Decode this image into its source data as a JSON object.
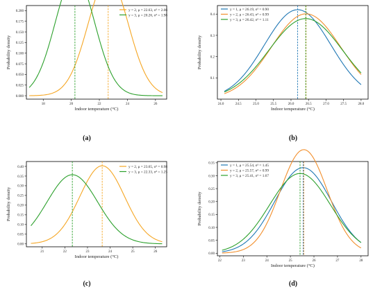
{
  "figure": {
    "panels": [
      {
        "label": "(a)",
        "legend": [
          "y = 2, μ = 22.63, σ² = 2.06",
          "y = 3, μ = 20.26, σ² = 1.98"
        ],
        "xlabel": "Indoor temperature (°C)",
        "ylabel": "Probability density"
      },
      {
        "label": "(b)",
        "legend": [
          "y = 1, μ = 26.19, σ² = 0.90",
          "y = 2, μ = 26.43, σ² = 0.99",
          "y = 3, μ = 26.42, σ² = 1.11"
        ],
        "xlabel": "Indoor temperature (°C)",
        "ylabel": "Probability density"
      },
      {
        "label": "(c)",
        "legend": [
          "y = 2, μ = 23.65, σ² = 0.98",
          "y = 3, μ = 22.33, σ² = 1.25"
        ],
        "xlabel": "Indoor temperature (°C)",
        "ylabel": "Probability density"
      },
      {
        "label": "(d)",
        "legend": [
          "y = 1, μ = 25.54, σ² = 1.45",
          "y = 2, μ = 25.57, σ² = 0.99",
          "y = 3, μ = 25.41, σ² = 1.67"
        ],
        "xlabel": "Indoor temperature (°C)",
        "ylabel": "Probability density"
      }
    ]
  },
  "chart_data": [
    {
      "type": "line",
      "xlabel": "Indoor temperature (°C)",
      "ylabel": "Probability density",
      "xlim": [
        16.8,
        26.8
      ],
      "ylim": [
        -0.008,
        0.212
      ],
      "xticks": [
        "18",
        "20",
        "22",
        "24",
        "26"
      ],
      "yticks": [
        "0.000",
        "0.025",
        "0.050",
        "0.075",
        "0.100",
        "0.125",
        "0.150",
        "0.175",
        "0.200"
      ],
      "legend_position": "top-right",
      "series": [
        {
          "name": "y = 2, μ = 22.63, σ² = 2.06",
          "mean": 22.63,
          "variance": 2.06,
          "x_range": [
            17.0,
            26.5
          ],
          "color": "#f5a623"
        },
        {
          "name": "y = 3, μ = 20.26, σ² = 1.98",
          "mean": 20.26,
          "variance": 1.98,
          "x_range": [
            17.0,
            26.5
          ],
          "color": "#2ca02c"
        }
      ]
    },
    {
      "type": "line",
      "xlabel": "Indoor temperature (°C)",
      "ylabel": "Probability density",
      "xlim": [
        23.9,
        28.2
      ],
      "ylim": [
        0.0,
        0.44
      ],
      "xticks": [
        "24.0",
        "24.5",
        "25.0",
        "25.5",
        "26.0",
        "26.5",
        "27.0",
        "27.5",
        "28.0"
      ],
      "yticks": [
        "0.1",
        "0.2",
        "0.3",
        "0.4"
      ],
      "legend_position": "top-left",
      "series": [
        {
          "name": "y = 1, μ = 26.19, σ² = 0.90",
          "mean": 26.19,
          "variance": 0.9,
          "x_range": [
            24.1,
            28.0
          ],
          "color": "#1f77b4"
        },
        {
          "name": "y = 2, μ = 26.43, σ² = 0.99",
          "mean": 26.43,
          "variance": 0.99,
          "x_range": [
            24.1,
            28.0
          ],
          "color": "#f28e2b"
        },
        {
          "name": "y = 3, μ = 26.42, σ² = 1.11",
          "mean": 26.42,
          "variance": 1.11,
          "x_range": [
            24.1,
            28.0
          ],
          "color": "#2ca02c"
        }
      ]
    },
    {
      "type": "line",
      "xlabel": "Indoor temperature (°C)",
      "ylabel": "Probability density",
      "xlim": [
        20.3,
        26.5
      ],
      "ylim": [
        -0.015,
        0.425
      ],
      "xticks": [
        "21",
        "22",
        "23",
        "24",
        "25",
        "26"
      ],
      "yticks": [
        "0.00",
        "0.05",
        "0.10",
        "0.15",
        "0.20",
        "0.25",
        "0.30",
        "0.35",
        "0.40"
      ],
      "legend_position": "top-right",
      "series": [
        {
          "name": "y = 2, μ = 23.65, σ² = 0.98",
          "mean": 23.65,
          "variance": 0.98,
          "x_range": [
            20.5,
            26.3
          ],
          "color": "#f5a623"
        },
        {
          "name": "y = 3, μ = 22.33, σ² = 1.25",
          "mean": 22.33,
          "variance": 1.25,
          "x_range": [
            20.5,
            26.3
          ],
          "color": "#2ca02c"
        }
      ]
    },
    {
      "type": "line",
      "xlabel": "Indoor temperature (°C)",
      "ylabel": "Probability density",
      "xlim": [
        21.9,
        28.3
      ],
      "ylim": [
        -0.01,
        0.355
      ],
      "xticks": [
        "22",
        "23",
        "24",
        "25",
        "26",
        "27",
        "28"
      ],
      "yticks": [
        "0.00",
        "0.05",
        "0.10",
        "0.15",
        "0.20",
        "0.25",
        "0.30",
        "0.35"
      ],
      "legend_position": "top-left",
      "series": [
        {
          "name": "y = 1, μ = 25.54, σ² = 1.45",
          "mean": 25.54,
          "variance": 1.45,
          "x_range": [
            22.1,
            28.0
          ],
          "color": "#1f77b4"
        },
        {
          "name": "y = 2, μ = 25.57, σ² = 0.99",
          "mean": 25.57,
          "variance": 0.99,
          "x_range": [
            22.1,
            28.0
          ],
          "color": "#f28e2b"
        },
        {
          "name": "y = 3, μ = 25.41, σ² = 1.67",
          "mean": 25.41,
          "variance": 1.67,
          "x_range": [
            22.1,
            28.0
          ],
          "color": "#2ca02c"
        }
      ]
    }
  ]
}
